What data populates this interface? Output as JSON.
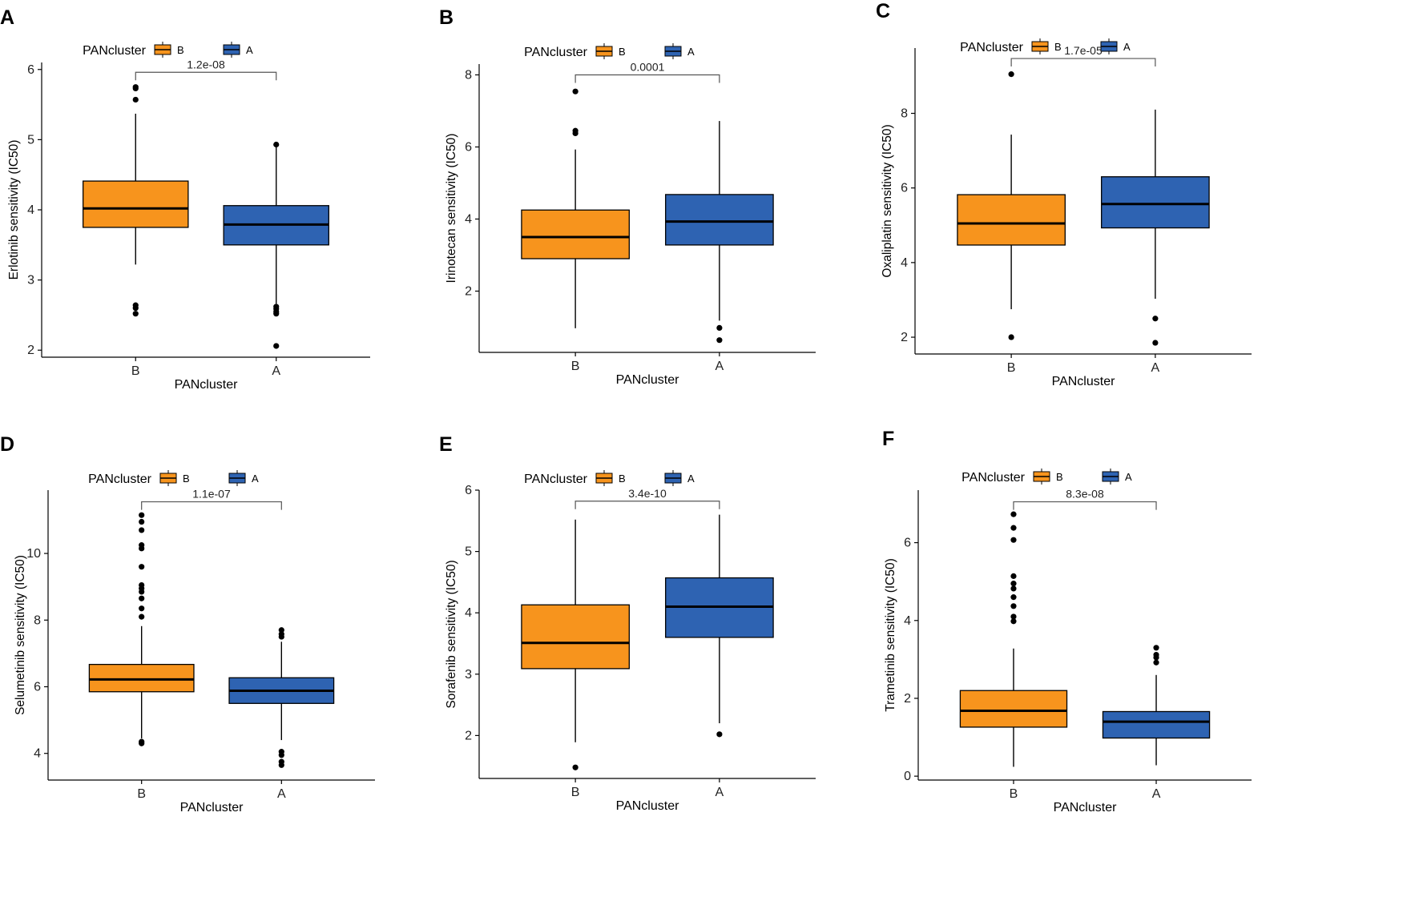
{
  "colors": {
    "B": "#F7941D",
    "A": "#2E63B2",
    "whisker": "#000000",
    "outlier": "#000000",
    "bracket": "#555555"
  },
  "chart_data": [
    {
      "type": "box",
      "panel_label": "A",
      "legend": {
        "title": "PANcluster",
        "entries": [
          "B",
          "A"
        ]
      },
      "xlabel": "PANcluster",
      "ylabel": "Erlotinib sensitivity (IC50)",
      "categories": [
        "B",
        "A"
      ],
      "ylim": [
        1.9,
        6.1
      ],
      "yticks": [
        2,
        3,
        4,
        5,
        6
      ],
      "pvalue": "1.2e-08",
      "bracket_y": 5.96,
      "boxes": [
        {
          "group": "B",
          "q1": 3.75,
          "median": 4.02,
          "q3": 4.41,
          "whisker_low": 3.22,
          "whisker_high": 5.37,
          "outliers": [
            5.75,
            5.73,
            5.57,
            2.64,
            2.6,
            2.52
          ]
        },
        {
          "group": "A",
          "q1": 3.5,
          "median": 3.79,
          "q3": 4.06,
          "whisker_low": 2.66,
          "whisker_high": 4.91,
          "outliers": [
            4.93,
            2.62,
            2.59,
            2.55,
            2.52,
            2.06
          ]
        }
      ]
    },
    {
      "type": "box",
      "panel_label": "B",
      "legend": {
        "title": "PANcluster",
        "entries": [
          "B",
          "A"
        ]
      },
      "xlabel": "PANcluster",
      "ylabel": "Irinotecan sensitivity (IC50)",
      "categories": [
        "B",
        "A"
      ],
      "ylim": [
        0.3,
        8.3
      ],
      "yticks": [
        2,
        4,
        6,
        8
      ],
      "pvalue": "0.0001",
      "bracket_y": 8.0,
      "boxes": [
        {
          "group": "B",
          "q1": 2.9,
          "median": 3.5,
          "q3": 4.25,
          "whisker_low": 0.97,
          "whisker_high": 5.93,
          "outliers": [
            7.54,
            6.45,
            6.38
          ]
        },
        {
          "group": "A",
          "q1": 3.28,
          "median": 3.93,
          "q3": 4.68,
          "whisker_low": 1.18,
          "whisker_high": 6.72,
          "outliers": [
            0.98,
            0.64
          ]
        }
      ]
    },
    {
      "type": "box",
      "panel_label": "C",
      "legend": {
        "title": "PANcluster",
        "entries": [
          "B",
          "A"
        ]
      },
      "xlabel": "PANcluster",
      "ylabel": "Oxaliplatin sensitivity (IC50)",
      "categories": [
        "B",
        "A"
      ],
      "ylim": [
        1.55,
        9.75
      ],
      "yticks": [
        2,
        4,
        6,
        8
      ],
      "pvalue": "1.7e-05",
      "bracket_y": 9.47,
      "boxes": [
        {
          "group": "B",
          "q1": 4.47,
          "median": 5.05,
          "q3": 5.82,
          "whisker_low": 2.75,
          "whisker_high": 7.43,
          "outliers": [
            9.05,
            2.0
          ]
        },
        {
          "group": "A",
          "q1": 4.93,
          "median": 5.57,
          "q3": 6.3,
          "whisker_low": 3.03,
          "whisker_high": 8.1,
          "outliers": [
            2.5,
            1.85
          ]
        }
      ]
    },
    {
      "type": "box",
      "panel_label": "D",
      "legend": {
        "title": "PANcluster",
        "entries": [
          "B",
          "A"
        ]
      },
      "xlabel": "PANcluster",
      "ylabel": "Selumetinib sensitivity (IC50)",
      "categories": [
        "B",
        "A"
      ],
      "ylim": [
        3.2,
        11.9
      ],
      "yticks": [
        4,
        6,
        8,
        10
      ],
      "pvalue": "1.1e-07",
      "bracket_y": 11.55,
      "boxes": [
        {
          "group": "B",
          "q1": 5.85,
          "median": 6.22,
          "q3": 6.67,
          "whisker_low": 4.45,
          "whisker_high": 7.82,
          "outliers": [
            11.15,
            10.95,
            10.7,
            10.25,
            10.15,
            9.6,
            9.05,
            8.95,
            8.85,
            8.65,
            8.35,
            8.1,
            4.35,
            4.3
          ]
        },
        {
          "group": "A",
          "q1": 5.5,
          "median": 5.88,
          "q3": 6.27,
          "whisker_low": 4.4,
          "whisker_high": 7.35,
          "outliers": [
            7.7,
            7.58,
            7.5,
            4.05,
            3.95,
            3.75,
            3.65
          ]
        }
      ]
    },
    {
      "type": "box",
      "panel_label": "E",
      "legend": {
        "title": "PANcluster",
        "entries": [
          "B",
          "A"
        ]
      },
      "xlabel": "PANcluster",
      "ylabel": "Sorafenib sensitivity (IC50)",
      "categories": [
        "B",
        "A"
      ],
      "ylim": [
        1.3,
        6.0
      ],
      "yticks": [
        2,
        3,
        4,
        5,
        6
      ],
      "pvalue": "3.4e-10",
      "bracket_y": 5.82,
      "boxes": [
        {
          "group": "B",
          "q1": 3.09,
          "median": 3.51,
          "q3": 4.13,
          "whisker_low": 1.89,
          "whisker_high": 5.52,
          "outliers": [
            1.48
          ]
        },
        {
          "group": "A",
          "q1": 3.6,
          "median": 4.1,
          "q3": 4.57,
          "whisker_low": 2.2,
          "whisker_high": 5.6,
          "outliers": [
            2.02
          ]
        }
      ]
    },
    {
      "type": "box",
      "panel_label": "F",
      "legend": {
        "title": "PANcluster",
        "entries": [
          "B",
          "A"
        ]
      },
      "xlabel": "PANcluster",
      "ylabel": "Trametinib sensitivity (IC50)",
      "categories": [
        "B",
        "A"
      ],
      "ylim": [
        -0.1,
        7.35
      ],
      "yticks": [
        0,
        2,
        4,
        6
      ],
      "pvalue": "8.3e-08",
      "bracket_y": 7.05,
      "boxes": [
        {
          "group": "B",
          "q1": 1.26,
          "median": 1.68,
          "q3": 2.2,
          "whisker_low": 0.24,
          "whisker_high": 3.28,
          "outliers": [
            6.73,
            6.38,
            6.07,
            5.14,
            4.95,
            4.82,
            4.6,
            4.37,
            4.1,
            3.98
          ]
        },
        {
          "group": "A",
          "q1": 0.98,
          "median": 1.4,
          "q3": 1.66,
          "whisker_low": 0.28,
          "whisker_high": 2.6,
          "outliers": [
            3.3,
            3.12,
            3.05,
            2.92
          ]
        }
      ]
    }
  ]
}
